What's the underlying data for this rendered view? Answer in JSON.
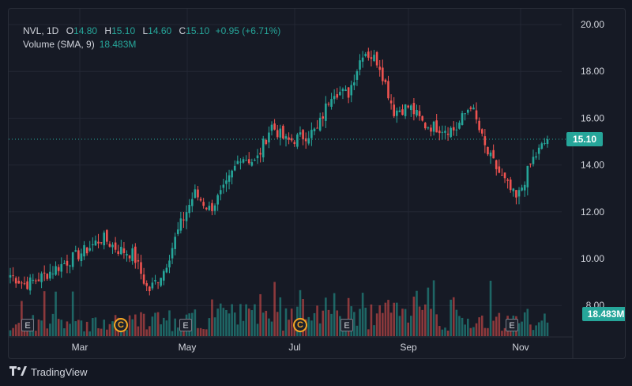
{
  "legend": {
    "symbol": "NVL, 1D",
    "o_label": "O",
    "o_value": "14.80",
    "h_label": "H",
    "h_value": "15.10",
    "l_label": "L",
    "l_value": "14.60",
    "c_label": "C",
    "c_value": "15.10",
    "change": "+0.95 (+6.71%)",
    "volume_label": "Volume (SMA, 9)",
    "volume_value": "18.483M"
  },
  "price_tag": "15.10",
  "volume_tag": "18.483M",
  "brand": "TradingView",
  "events": {
    "earnings_label": "E",
    "dividend_label": "C",
    "earnings_months": [
      "Feb",
      "Apr",
      "Jul",
      "Oct"
    ],
    "dividend_months": [
      "Mar",
      "Jun"
    ]
  },
  "colors": {
    "up": "#26a69a",
    "down": "#ef5350",
    "bg": "#161a25",
    "grid": "#232734",
    "text": "#d1d4dc"
  },
  "chart_data": {
    "type": "candlestick",
    "title": "",
    "ylim": [
      6.5,
      21
    ],
    "y_ticks": [
      "20.00",
      "18.00",
      "16.00",
      "14.00",
      "12.00",
      "10.00",
      "8.00"
    ],
    "x_ticks": [
      "Mar",
      "May",
      "Jul",
      "Sep",
      "Nov"
    ],
    "current_price": 15.1,
    "grid": true,
    "close_waypoints": [
      {
        "date": "Feb",
        "close": 9.3
      },
      {
        "date": "Feb",
        "close": 8.9
      },
      {
        "date": "Feb",
        "close": 9.2
      },
      {
        "date": "Feb",
        "close": 9.6
      },
      {
        "date": "Mar",
        "close": 10.0
      },
      {
        "date": "Mar",
        "close": 10.4
      },
      {
        "date": "Mar",
        "close": 10.9
      },
      {
        "date": "Mar",
        "close": 10.4
      },
      {
        "date": "Mar",
        "close": 10.2
      },
      {
        "date": "Apr",
        "close": 8.6
      },
      {
        "date": "Apr",
        "close": 9.5
      },
      {
        "date": "Apr",
        "close": 11.3
      },
      {
        "date": "May",
        "close": 12.8
      },
      {
        "date": "May",
        "close": 12.1
      },
      {
        "date": "May",
        "close": 13.0
      },
      {
        "date": "May",
        "close": 14.4
      },
      {
        "date": "Jun",
        "close": 14.1
      },
      {
        "date": "Jun",
        "close": 15.7
      },
      {
        "date": "Jun",
        "close": 15.0
      },
      {
        "date": "Jul",
        "close": 15.2
      },
      {
        "date": "Jul",
        "close": 15.5
      },
      {
        "date": "Jul",
        "close": 17.2
      },
      {
        "date": "Aug",
        "close": 17.0
      },
      {
        "date": "Aug",
        "close": 18.9
      },
      {
        "date": "Aug",
        "close": 18.4
      },
      {
        "date": "Aug",
        "close": 16.3
      },
      {
        "date": "Sep",
        "close": 16.5
      },
      {
        "date": "Sep",
        "close": 15.7
      },
      {
        "date": "Sep",
        "close": 15.6
      },
      {
        "date": "Oct",
        "close": 15.5
      },
      {
        "date": "Oct",
        "close": 16.6
      },
      {
        "date": "Oct",
        "close": 14.6
      },
      {
        "date": "Oct",
        "close": 13.5
      },
      {
        "date": "Nov",
        "close": 12.5
      },
      {
        "date": "Nov",
        "close": 14.2
      },
      {
        "date": "Nov",
        "close": 15.1
      }
    ],
    "volume_sma_last": "18.483M"
  }
}
